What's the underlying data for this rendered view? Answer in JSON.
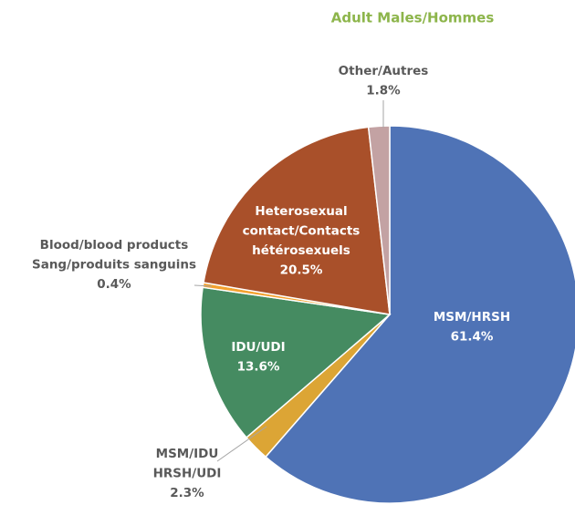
{
  "chart_data": {
    "type": "pie",
    "title": "Adult Males/Hommes",
    "categories": [
      [
        "MSM/HRSH"
      ],
      [
        "MSM/IDU",
        "HRSH/UDI"
      ],
      [
        "IDU/UDI"
      ],
      [
        "Blood/blood products",
        "Sang/produits sanguins"
      ],
      [
        "Heterosexual",
        "contact/Contacts",
        "hétérosexuels"
      ],
      [
        "Other/Autres"
      ]
    ],
    "values": [
      61.4,
      2.3,
      13.6,
      0.4,
      20.5,
      1.8
    ],
    "value_labels": [
      "61.4%",
      "2.3%",
      "13.6%",
      "0.4%",
      "20.5%",
      "1.8%"
    ],
    "colors": [
      "#4f73b6",
      "#dca535",
      "#458b61",
      "#f3a12e",
      "#a9502a",
      "#c3a2a3"
    ]
  }
}
